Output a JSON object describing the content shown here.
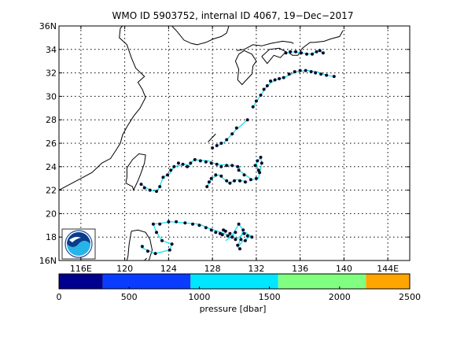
{
  "chart_data": {
    "type": "scatter",
    "title": "WMO ID 5903752, internal ID 4067, 19−Dec−2017",
    "xlim": [
      114,
      146
    ],
    "ylim": [
      16,
      36
    ],
    "x_ticks": [
      116,
      120,
      124,
      128,
      132,
      136,
      140,
      144
    ],
    "x_tick_labels": [
      "116E",
      "120",
      "124",
      "128",
      "132",
      "136",
      "140",
      "144E"
    ],
    "y_ticks": [
      16,
      18,
      20,
      22,
      24,
      26,
      28,
      30,
      32,
      34,
      36
    ],
    "y_tick_labels": [
      "16N",
      "18",
      "20",
      "22",
      "24",
      "26",
      "28",
      "30",
      "32",
      "34",
      "36N"
    ],
    "grid": true,
    "colorbar": {
      "label": "pressure [dbar]",
      "range": [
        0,
        2500
      ],
      "tick_values": [
        0,
        500,
        1000,
        1500,
        2000,
        2500
      ],
      "tick_labels": [
        "0",
        "500",
        "1000",
        "1500",
        "2000",
        "2500"
      ],
      "bins": [
        {
          "from": 0,
          "to": 313,
          "color": "#00008f"
        },
        {
          "from": 313,
          "to": 938,
          "color": "#0a3cff"
        },
        {
          "from": 938,
          "to": 1563,
          "color": "#00e6ff"
        },
        {
          "from": 1563,
          "to": 2188,
          "color": "#80ff80"
        },
        {
          "from": 2188,
          "to": 2500,
          "color": "#ffa500"
        }
      ]
    },
    "track_color": "#00e6e6",
    "point_color": "#0b0b2e",
    "tracks": [
      [
        [
          121.5,
          17.1
        ],
        [
          122.8,
          16.6
        ],
        [
          124.1,
          16.9
        ],
        [
          124.3,
          17.4
        ],
        [
          123.4,
          17.7
        ],
        [
          122.9,
          18.4
        ],
        [
          122.6,
          19.1
        ],
        [
          124.3,
          19.3
        ],
        [
          126.8,
          19.1
        ],
        [
          127.8,
          18.7
        ],
        [
          128.8,
          18.4
        ],
        [
          129.6,
          18.1
        ],
        [
          130.3,
          17.9
        ],
        [
          131.0,
          18.4
        ],
        [
          131.5,
          18.1
        ],
        [
          130.7,
          17.6
        ],
        [
          130.3,
          17.1
        ],
        [
          130.8,
          18.6
        ],
        [
          130.4,
          19.1
        ],
        [
          129.7,
          18.0
        ],
        [
          129.2,
          17.7
        ],
        [
          130.0,
          18.2
        ]
      ],
      [
        [
          121.5,
          22.5
        ],
        [
          122.3,
          22.0
        ],
        [
          122.9,
          21.9
        ],
        [
          123.2,
          22.3
        ],
        [
          123.5,
          23.1
        ],
        [
          124.1,
          23.4
        ],
        [
          124.5,
          24.0
        ],
        [
          125.5,
          24.2
        ],
        [
          125.9,
          24.1
        ],
        [
          126.3,
          24.6
        ],
        [
          127.6,
          24.5
        ],
        [
          128.4,
          24.2
        ],
        [
          129.8,
          24.1
        ],
        [
          130.5,
          24.0
        ],
        [
          130.4,
          23.7
        ]
      ],
      [
        [
          130.4,
          23.7
        ],
        [
          131.6,
          22.9
        ],
        [
          132.2,
          23.0
        ],
        [
          132.5,
          24.3
        ],
        [
          132.4,
          24.8
        ],
        [
          132.0,
          24.3
        ],
        [
          132.2,
          23.6
        ]
      ],
      [
        [
          127.5,
          22.3
        ],
        [
          127.9,
          23.0
        ],
        [
          128.6,
          23.3
        ],
        [
          129.5,
          22.6
        ],
        [
          130.2,
          22.9
        ],
        [
          131.2,
          22.7
        ]
      ],
      [
        [
          128.3,
          25.7
        ],
        [
          129.1,
          26.1
        ],
        [
          130.1,
          27.1
        ],
        [
          131.2,
          28.0
        ]
      ],
      [
        [
          131.7,
          29.1
        ],
        [
          132.4,
          30.1
        ],
        [
          133.0,
          30.9
        ],
        [
          133.7,
          31.4
        ],
        [
          134.5,
          31.6
        ],
        [
          135.7,
          32.1
        ],
        [
          136.7,
          32.2
        ],
        [
          137.5,
          32.1
        ],
        [
          138.4,
          31.8
        ],
        [
          139.1,
          31.7
        ]
      ],
      [
        [
          134.7,
          33.7
        ],
        [
          135.4,
          33.8
        ],
        [
          136.1,
          33.7
        ],
        [
          137.0,
          33.6
        ],
        [
          137.7,
          33.9
        ],
        [
          138.1,
          33.7
        ]
      ]
    ],
    "points": [
      [
        121.6,
        17.2
      ],
      [
        122.1,
        16.8
      ],
      [
        122.8,
        16.6
      ],
      [
        124.1,
        16.9
      ],
      [
        124.3,
        17.4
      ],
      [
        123.4,
        17.7
      ],
      [
        122.9,
        18.4
      ],
      [
        122.6,
        19.1
      ],
      [
        123.2,
        19.1
      ],
      [
        124.0,
        19.3
      ],
      [
        124.7,
        19.3
      ],
      [
        125.5,
        19.2
      ],
      [
        126.2,
        19.1
      ],
      [
        126.8,
        19.0
      ],
      [
        127.4,
        18.8
      ],
      [
        127.9,
        18.6
      ],
      [
        128.3,
        18.4
      ],
      [
        128.7,
        18.3
      ],
      [
        129.0,
        18.6
      ],
      [
        129.4,
        18.1
      ],
      [
        129.8,
        18.0
      ],
      [
        130.1,
        17.8
      ],
      [
        130.3,
        17.3
      ],
      [
        130.5,
        17.0
      ],
      [
        130.8,
        18.6
      ],
      [
        130.4,
        19.1
      ],
      [
        130.9,
        18.3
      ],
      [
        131.2,
        18.1
      ],
      [
        131.6,
        18.0
      ],
      [
        130.1,
        18.4
      ],
      [
        129.6,
        18.3
      ],
      [
        129.2,
        18.5
      ],
      [
        128.9,
        18.2
      ],
      [
        130.6,
        17.8
      ],
      [
        131.0,
        17.7
      ],
      [
        121.5,
        22.5
      ],
      [
        121.8,
        22.2
      ],
      [
        122.3,
        22.0
      ],
      [
        122.9,
        21.9
      ],
      [
        123.2,
        22.3
      ],
      [
        123.5,
        23.1
      ],
      [
        123.9,
        23.3
      ],
      [
        124.2,
        23.7
      ],
      [
        124.5,
        24.0
      ],
      [
        124.9,
        24.3
      ],
      [
        125.3,
        24.2
      ],
      [
        125.7,
        24.0
      ],
      [
        126.0,
        24.3
      ],
      [
        126.4,
        24.6
      ],
      [
        126.9,
        24.5
      ],
      [
        127.4,
        24.4
      ],
      [
        127.9,
        24.3
      ],
      [
        128.4,
        24.2
      ],
      [
        128.8,
        24.0
      ],
      [
        129.3,
        24.1
      ],
      [
        129.8,
        24.1
      ],
      [
        130.3,
        24.0
      ],
      [
        130.4,
        23.7
      ],
      [
        130.9,
        23.3
      ],
      [
        131.5,
        22.9
      ],
      [
        132.0,
        23.0
      ],
      [
        132.3,
        23.5
      ],
      [
        132.5,
        24.3
      ],
      [
        132.4,
        24.8
      ],
      [
        132.1,
        24.5
      ],
      [
        131.9,
        24.1
      ],
      [
        132.2,
        23.7
      ],
      [
        127.5,
        22.3
      ],
      [
        127.7,
        22.7
      ],
      [
        127.9,
        23.0
      ],
      [
        128.3,
        23.3
      ],
      [
        128.8,
        23.2
      ],
      [
        129.3,
        22.8
      ],
      [
        129.6,
        22.6
      ],
      [
        130.0,
        22.8
      ],
      [
        130.5,
        22.8
      ],
      [
        131.0,
        22.7
      ],
      [
        128.0,
        25.6
      ],
      [
        128.4,
        25.8
      ],
      [
        128.8,
        26.0
      ],
      [
        129.3,
        26.3
      ],
      [
        129.8,
        26.8
      ],
      [
        130.2,
        27.3
      ],
      [
        131.2,
        28.0
      ],
      [
        131.7,
        29.1
      ],
      [
        132.0,
        29.6
      ],
      [
        132.4,
        30.1
      ],
      [
        132.7,
        30.6
      ],
      [
        133.0,
        30.9
      ],
      [
        133.3,
        31.3
      ],
      [
        133.7,
        31.4
      ],
      [
        134.1,
        31.5
      ],
      [
        134.5,
        31.6
      ],
      [
        135.0,
        31.9
      ],
      [
        135.5,
        32.1
      ],
      [
        136.0,
        32.2
      ],
      [
        136.5,
        32.2
      ],
      [
        137.0,
        32.1
      ],
      [
        137.4,
        32.0
      ],
      [
        137.9,
        31.9
      ],
      [
        138.4,
        31.8
      ],
      [
        139.1,
        31.7
      ],
      [
        134.7,
        33.7
      ],
      [
        135.1,
        33.8
      ],
      [
        135.6,
        33.8
      ],
      [
        136.1,
        33.7
      ],
      [
        136.6,
        33.6
      ],
      [
        137.1,
        33.6
      ],
      [
        137.5,
        33.8
      ],
      [
        137.8,
        33.9
      ],
      [
        138.1,
        33.7
      ]
    ]
  },
  "map": {
    "coastlines": [
      [
        [
          114.0,
          22.0
        ],
        [
          115.6,
          22.8
        ],
        [
          117.0,
          23.5
        ],
        [
          117.9,
          24.3
        ],
        [
          118.7,
          24.7
        ],
        [
          119.2,
          25.4
        ],
        [
          119.6,
          26.0
        ],
        [
          119.8,
          26.7
        ],
        [
          120.2,
          27.4
        ],
        [
          120.8,
          28.3
        ],
        [
          121.4,
          29.0
        ],
        [
          121.9,
          29.9
        ],
        [
          121.6,
          30.6
        ],
        [
          121.2,
          31.2
        ],
        [
          121.8,
          31.7
        ],
        [
          121.0,
          32.4
        ],
        [
          120.6,
          33.3
        ],
        [
          120.2,
          34.4
        ],
        [
          119.5,
          35.0
        ],
        [
          119.6,
          35.8
        ],
        [
          119.8,
          36.0
        ]
      ],
      [
        [
          124.3,
          36.0
        ],
        [
          124.8,
          35.5
        ],
        [
          125.4,
          34.8
        ],
        [
          126.1,
          34.5
        ],
        [
          126.6,
          34.4
        ],
        [
          127.4,
          34.6
        ],
        [
          128.1,
          34.9
        ],
        [
          128.8,
          35.1
        ],
        [
          129.3,
          35.4
        ],
        [
          129.5,
          36.0
        ]
      ],
      [
        [
          130.2,
          33.9
        ],
        [
          130.9,
          34.0
        ],
        [
          131.7,
          34.4
        ],
        [
          132.5,
          34.3
        ],
        [
          133.3,
          34.5
        ],
        [
          134.4,
          34.7
        ],
        [
          135.2,
          34.6
        ],
        [
          135.4,
          34.5
        ]
      ],
      [
        [
          130.9,
          33.9
        ],
        [
          130.4,
          33.6
        ],
        [
          130.1,
          33.0
        ],
        [
          130.4,
          32.3
        ],
        [
          130.3,
          31.4
        ],
        [
          130.7,
          31.0
        ],
        [
          131.1,
          31.4
        ],
        [
          131.6,
          31.9
        ],
        [
          131.7,
          32.6
        ],
        [
          132.0,
          33.0
        ],
        [
          131.6,
          33.6
        ],
        [
          130.9,
          33.9
        ]
      ],
      [
        [
          132.5,
          33.4
        ],
        [
          133.0,
          32.8
        ],
        [
          133.6,
          33.5
        ],
        [
          134.2,
          33.3
        ],
        [
          134.7,
          33.8
        ],
        [
          134.1,
          34.1
        ],
        [
          133.2,
          34.0
        ],
        [
          132.5,
          33.4
        ]
      ],
      [
        [
          135.0,
          33.7
        ],
        [
          135.3,
          33.5
        ],
        [
          135.8,
          33.5
        ],
        [
          136.2,
          34.1
        ],
        [
          136.9,
          34.6
        ],
        [
          137.3,
          34.6
        ],
        [
          138.2,
          34.7
        ],
        [
          138.8,
          34.9
        ],
        [
          139.6,
          35.1
        ],
        [
          139.9,
          35.6
        ]
      ],
      [
        [
          120.1,
          22.6
        ],
        [
          120.2,
          23.1
        ],
        [
          120.2,
          23.9
        ],
        [
          120.7,
          24.6
        ],
        [
          121.3,
          25.1
        ],
        [
          121.9,
          25.0
        ],
        [
          121.8,
          24.3
        ],
        [
          121.5,
          23.5
        ],
        [
          121.2,
          22.8
        ],
        [
          120.8,
          22.0
        ],
        [
          120.7,
          22.3
        ],
        [
          120.1,
          22.6
        ]
      ],
      [
        [
          120.6,
          18.5
        ],
        [
          120.4,
          17.4
        ],
        [
          120.3,
          16.4
        ],
        [
          120.2,
          16.0
        ]
      ],
      [
        [
          122.2,
          16.0
        ],
        [
          122.5,
          16.9
        ],
        [
          122.3,
          17.8
        ],
        [
          121.9,
          18.4
        ],
        [
          121.2,
          18.6
        ],
        [
          120.6,
          18.5
        ]
      ],
      [
        [
          121.8,
          16.0
        ],
        [
          122.0,
          16.2
        ]
      ],
      [
        [
          127.6,
          26.1
        ],
        [
          128.0,
          26.5
        ],
        [
          128.3,
          26.8
        ]
      ]
    ]
  }
}
